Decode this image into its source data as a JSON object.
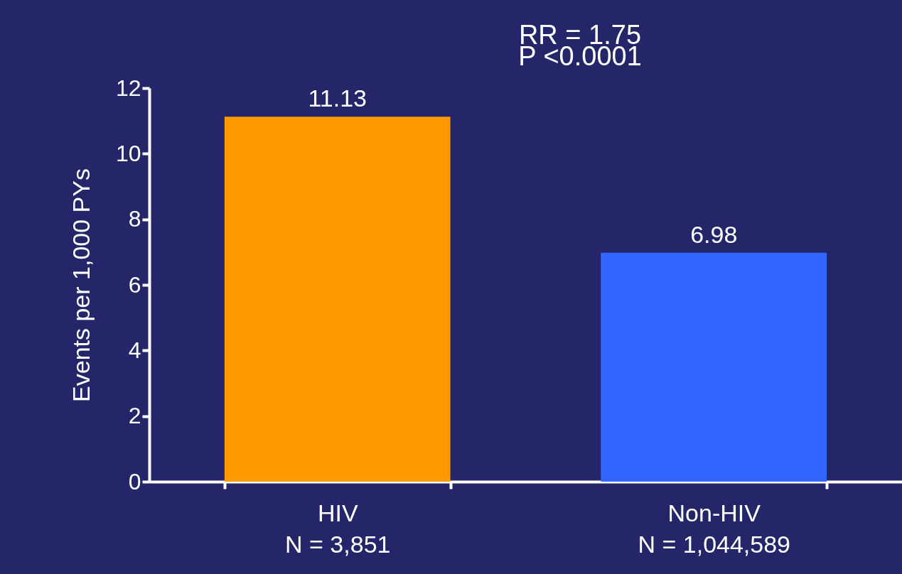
{
  "chart_data": {
    "type": "bar",
    "categories": [
      "HIV\nN = 3,851",
      "Non-HIV\nN = 1,044,589"
    ],
    "values": [
      11.13,
      6.98
    ],
    "colors": [
      "#ff9900",
      "#3366ff"
    ],
    "ylabel": "Events per 1,000 PYs",
    "ylim": [
      0,
      12
    ],
    "yticks": [
      0,
      2,
      4,
      6,
      8,
      10,
      12
    ],
    "data_labels": true,
    "grid": false,
    "legend": false,
    "annotations": [
      "RR = 1.75",
      "P <0.0001"
    ]
  }
}
